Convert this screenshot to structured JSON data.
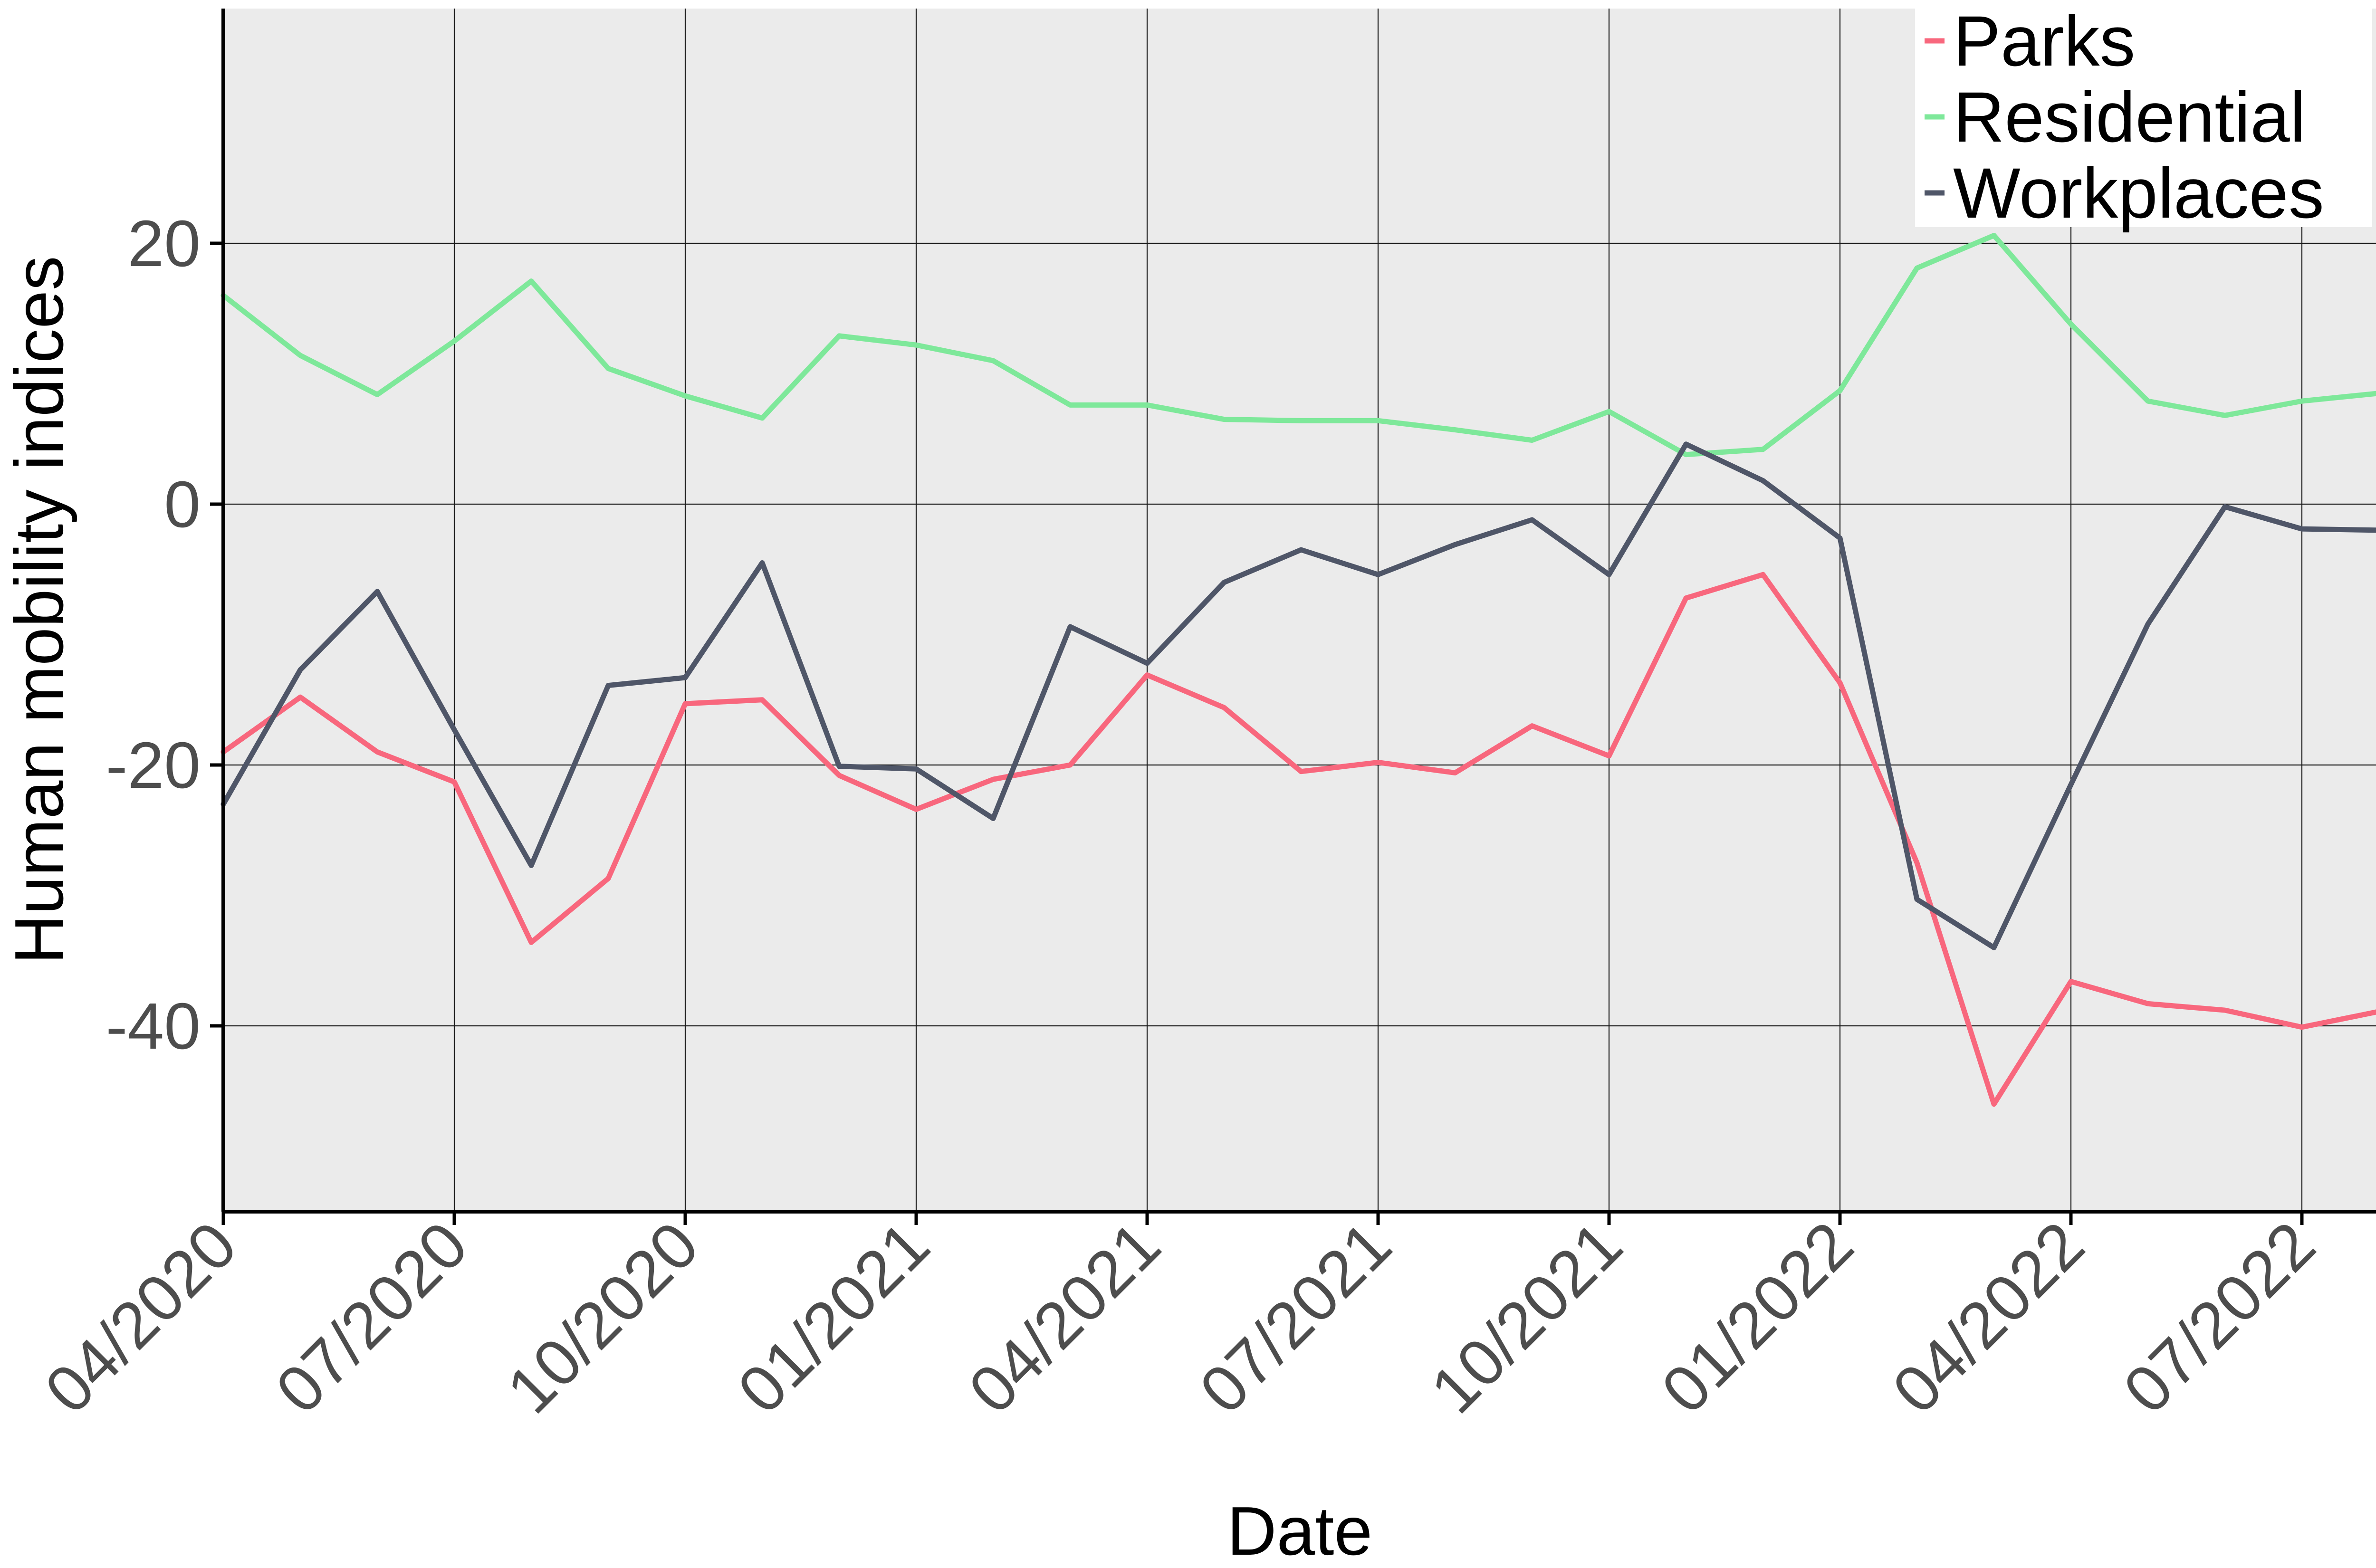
{
  "chart_data": {
    "type": "line",
    "xlabel": "Date",
    "ylabel": "Human mobility indices",
    "x_tick_labels": [
      "04/2020",
      "07/2020",
      "10/2020",
      "01/2021",
      "04/2021",
      "07/2021",
      "10/2021",
      "01/2022",
      "04/2022",
      "07/2022"
    ],
    "y_tick_labels": [
      "20",
      "0",
      "-20",
      "-40"
    ],
    "y_ticks": [
      20,
      0,
      -20,
      -40
    ],
    "ylim": [
      -54,
      38
    ],
    "x_range_months": [
      0,
      28
    ],
    "x_start": "04/2020",
    "grid": true,
    "legend_position": "top-right",
    "background_color": "#ebebeb",
    "dates": [
      "04/2020",
      "05/2020",
      "06/2020",
      "07/2020",
      "08/2020",
      "09/2020",
      "10/2020",
      "11/2020",
      "12/2020",
      "01/2021",
      "02/2021",
      "03/2021",
      "04/2021",
      "05/2021",
      "06/2021",
      "07/2021",
      "08/2021",
      "09/2021",
      "10/2021",
      "11/2021",
      "12/2021",
      "01/2022",
      "02/2022",
      "03/2022",
      "04/2022",
      "05/2022",
      "06/2022",
      "07/2022",
      "08/2022"
    ],
    "series": [
      {
        "name": "Parks",
        "color": "#f8677d",
        "values": [
          -19.0,
          -14.8,
          -19.0,
          -21.3,
          -33.6,
          -28.7,
          -15.3,
          -15.0,
          -20.8,
          -23.4,
          -21.1,
          -20.0,
          -13.1,
          -15.6,
          -20.5,
          -19.8,
          -20.6,
          -17.0,
          -19.3,
          -7.2,
          -5.4,
          -13.7,
          -27.5,
          -46.0,
          -36.6,
          -38.3,
          -38.8,
          -40.1,
          -38.9
        ]
      },
      {
        "name": "Residential",
        "color": "#7ee89a",
        "values": [
          16.0,
          11.4,
          8.4,
          12.5,
          17.1,
          10.4,
          8.3,
          6.6,
          12.9,
          12.2,
          11.0,
          7.6,
          7.6,
          6.5,
          6.4,
          6.4,
          5.7,
          4.9,
          7.1,
          3.8,
          4.2,
          8.7,
          18.1,
          20.6,
          13.8,
          7.9,
          6.8,
          7.9,
          8.5
        ]
      },
      {
        "name": "Workplaces",
        "color": "#4f5668",
        "values": [
          -23.0,
          -12.7,
          -6.7,
          -17.3,
          -27.7,
          -13.9,
          -13.3,
          -4.5,
          -20.1,
          -20.3,
          -24.1,
          -9.4,
          -12.2,
          -6.0,
          -3.5,
          -5.4,
          -3.1,
          -1.2,
          -5.4,
          4.6,
          1.8,
          -2.6,
          -30.3,
          -34.0,
          -21.5,
          -9.2,
          -0.2,
          -1.9,
          -2.0
        ]
      }
    ]
  }
}
